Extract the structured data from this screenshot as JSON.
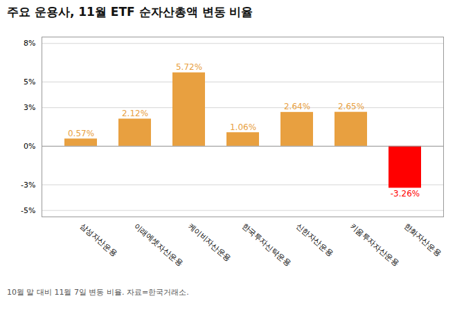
{
  "chart_data": {
    "type": "bar",
    "title": "주요 운용사, 11월 ETF 순자산총액 변동 비율",
    "caption": "10월 말 대비 11월 7일 변동 비율. 자료=한국거래소.",
    "categories": [
      "삼성자산운용",
      "이래에셋자산운용",
      "케이비자산운용",
      "한국투자신탁운용",
      "신한자산운용",
      "키움투자자산운용",
      "한화자산운용"
    ],
    "values": [
      0.57,
      2.12,
      5.72,
      1.06,
      2.64,
      2.65,
      -3.26
    ],
    "value_labels": [
      "0.57%",
      "2.12%",
      "5.72%",
      "1.06%",
      "2.64%",
      "2.65%",
      "-3.26%"
    ],
    "colors": [
      "#E8A040",
      "#E8A040",
      "#E8A040",
      "#E8A040",
      "#E8A040",
      "#E8A040",
      "#FF0000"
    ],
    "ylim": [
      -5.5,
      8.5
    ],
    "yticks": [
      {
        "value": -5,
        "label": "-5%"
      },
      {
        "value": -3,
        "label": "-3%"
      },
      {
        "value": 0,
        "label": "0%"
      },
      {
        "value": 3,
        "label": "3%"
      },
      {
        "value": 5,
        "label": "5%"
      },
      {
        "value": 8,
        "label": "8%"
      }
    ],
    "grid": true,
    "data_labels": true
  }
}
